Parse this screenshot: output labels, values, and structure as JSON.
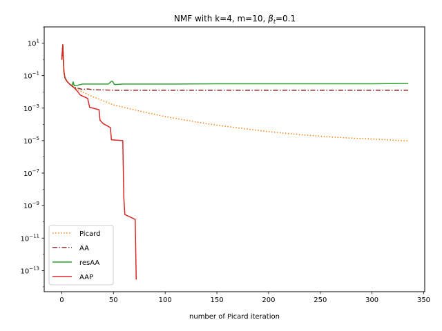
{
  "chart_data": {
    "type": "line",
    "title": "NMF with k=4, m=10,  βt=0.1",
    "title_parts": {
      "main": "NMF with k=4, m=10,  ",
      "beta": "β",
      "sub": "t",
      "tail": "=0.1"
    },
    "xlabel": "number of Picard iteration",
    "ylabel": "",
    "xlim": [
      -17,
      351
    ],
    "ylim_log10": [
      -14.3,
      2.0
    ],
    "yscale": "log",
    "grid": false,
    "legend_position": "lower-left",
    "x_ticks": [
      {
        "value": 0,
        "label": "0"
      },
      {
        "value": 50,
        "label": "50"
      },
      {
        "value": 100,
        "label": "100"
      },
      {
        "value": 150,
        "label": "150"
      },
      {
        "value": 200,
        "label": "200"
      },
      {
        "value": 250,
        "label": "250"
      },
      {
        "value": 300,
        "label": "300"
      },
      {
        "value": 350,
        "label": "350"
      }
    ],
    "y_ticks": [
      {
        "exp": 1,
        "label": "10",
        "sup": "1"
      },
      {
        "exp": -1,
        "label": "10",
        "sup": "−1"
      },
      {
        "exp": -3,
        "label": "10",
        "sup": "−3"
      },
      {
        "exp": -5,
        "label": "10",
        "sup": "−5"
      },
      {
        "exp": -7,
        "label": "10",
        "sup": "−7"
      },
      {
        "exp": -9,
        "label": "10",
        "sup": "−9"
      },
      {
        "exp": -11,
        "label": "10",
        "sup": "−11"
      },
      {
        "exp": -13,
        "label": "10",
        "sup": "−13"
      }
    ],
    "series": [
      {
        "name": "Picard",
        "color": "#ff7f0e",
        "dash": "1.5,2.5",
        "points": [
          [
            0,
            -0.02
          ],
          [
            1,
            0.9
          ],
          [
            2,
            -0.7
          ],
          [
            3,
            -1.1
          ],
          [
            5,
            -1.35
          ],
          [
            8,
            -1.55
          ],
          [
            12,
            -1.75
          ],
          [
            20,
            -2.0
          ],
          [
            30,
            -2.3
          ],
          [
            40,
            -2.55
          ],
          [
            50,
            -2.8
          ],
          [
            60,
            -2.95
          ],
          [
            80,
            -3.25
          ],
          [
            100,
            -3.52
          ],
          [
            125,
            -3.8
          ],
          [
            150,
            -4.05
          ],
          [
            175,
            -4.25
          ],
          [
            200,
            -4.45
          ],
          [
            225,
            -4.6
          ],
          [
            250,
            -4.73
          ],
          [
            275,
            -4.83
          ],
          [
            300,
            -4.9
          ],
          [
            320,
            -4.97
          ],
          [
            335,
            -5.02
          ]
        ]
      },
      {
        "name": "AA",
        "color": "#8c2d2d",
        "dash": "7,2.5,1.5,2.5",
        "points": [
          [
            0,
            -0.02
          ],
          [
            1,
            0.9
          ],
          [
            2,
            -0.7
          ],
          [
            3,
            -1.15
          ],
          [
            5,
            -1.35
          ],
          [
            8,
            -1.55
          ],
          [
            12,
            -1.72
          ],
          [
            16,
            -1.78
          ],
          [
            20,
            -1.85
          ],
          [
            25,
            -1.82
          ],
          [
            30,
            -1.87
          ],
          [
            40,
            -1.88
          ],
          [
            50,
            -1.9
          ],
          [
            100,
            -1.9
          ],
          [
            150,
            -1.9
          ],
          [
            200,
            -1.9
          ],
          [
            250,
            -1.9
          ],
          [
            300,
            -1.9
          ],
          [
            335,
            -1.9
          ]
        ]
      },
      {
        "name": "resAA",
        "color": "#2ca02c",
        "dash": "",
        "points": [
          [
            0,
            -0.02
          ],
          [
            1,
            0.9
          ],
          [
            2,
            -0.7
          ],
          [
            3,
            -1.15
          ],
          [
            5,
            -1.35
          ],
          [
            8,
            -1.55
          ],
          [
            10,
            -1.6
          ],
          [
            11,
            -1.38
          ],
          [
            12,
            -1.62
          ],
          [
            15,
            -1.6
          ],
          [
            20,
            -1.52
          ],
          [
            30,
            -1.52
          ],
          [
            45,
            -1.52
          ],
          [
            48,
            -1.35
          ],
          [
            49,
            -1.35
          ],
          [
            51,
            -1.55
          ],
          [
            60,
            -1.52
          ],
          [
            100,
            -1.52
          ],
          [
            150,
            -1.5
          ],
          [
            200,
            -1.5
          ],
          [
            250,
            -1.5
          ],
          [
            300,
            -1.5
          ],
          [
            335,
            -1.48
          ]
        ]
      },
      {
        "name": "AAP",
        "color": "#d62728",
        "dash": "",
        "points": [
          [
            0,
            -0.02
          ],
          [
            1,
            0.9
          ],
          [
            2,
            -0.7
          ],
          [
            3,
            -1.1
          ],
          [
            5,
            -1.35
          ],
          [
            8,
            -1.55
          ],
          [
            12,
            -1.75
          ],
          [
            15,
            -1.95
          ],
          [
            18,
            -2.2
          ],
          [
            25,
            -2.4
          ],
          [
            27,
            -2.95
          ],
          [
            36,
            -3.1
          ],
          [
            37,
            -3.75
          ],
          [
            40,
            -3.95
          ],
          [
            47,
            -4.2
          ],
          [
            48,
            -4.95
          ],
          [
            59,
            -5.0
          ],
          [
            60,
            -8.5
          ],
          [
            61,
            -9.55
          ],
          [
            71,
            -9.85
          ],
          [
            72,
            -13.55
          ]
        ]
      }
    ]
  }
}
